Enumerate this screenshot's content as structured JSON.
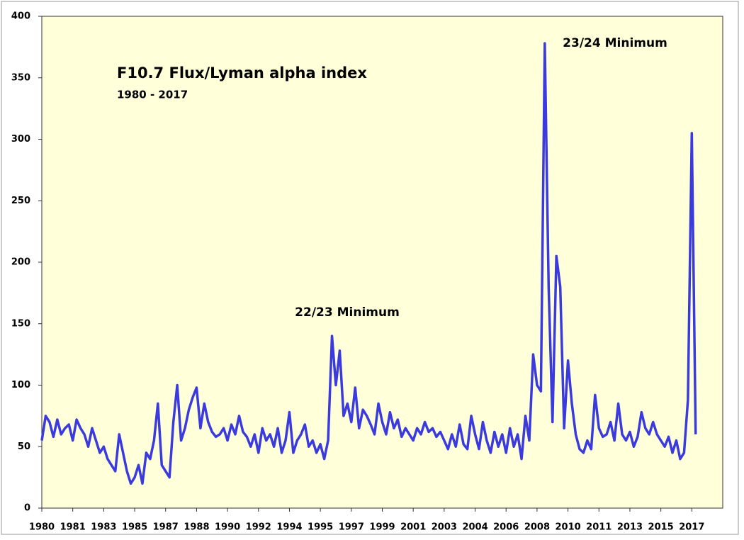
{
  "chart_data": {
    "type": "line",
    "title": "F10.7 Flux/Lyman alpha index",
    "subtitle": "1980 - 2017",
    "annotations": [
      "22/23 Minimum",
      "23/24 Minimum"
    ],
    "series": [
      {
        "name": "F10.7 Flux/Lyman alpha index",
        "color": "#3a3ade",
        "values": [
          55,
          75,
          70,
          58,
          72,
          60,
          65,
          68,
          55,
          72,
          65,
          60,
          50,
          65,
          55,
          45,
          50,
          40,
          35,
          30,
          60,
          45,
          30,
          20,
          25,
          35,
          20,
          45,
          40,
          55,
          85,
          35,
          30,
          25,
          70,
          100,
          55,
          65,
          80,
          90,
          98,
          65,
          85,
          70,
          62,
          58,
          60,
          65,
          55,
          68,
          60,
          75,
          62,
          58,
          50,
          60,
          45,
          65,
          55,
          60,
          50,
          65,
          45,
          55,
          78,
          45,
          55,
          60,
          68,
          50,
          55,
          45,
          52,
          40,
          55,
          140,
          100,
          128,
          75,
          85,
          70,
          98,
          65,
          80,
          75,
          68,
          60,
          85,
          70,
          60,
          78,
          65,
          72,
          58,
          65,
          60,
          55,
          65,
          60,
          70,
          62,
          65,
          58,
          62,
          55,
          48,
          60,
          50,
          68,
          52,
          48,
          75,
          60,
          48,
          70,
          55,
          45,
          62,
          50,
          60,
          45,
          65,
          50,
          60,
          40,
          75,
          55,
          125,
          100,
          95,
          378,
          180,
          70,
          205,
          180,
          65,
          120,
          85,
          60,
          48,
          45,
          55,
          48,
          92,
          65,
          58,
          60,
          70,
          55,
          85,
          60,
          55,
          62,
          50,
          58,
          78,
          65,
          60,
          70,
          60,
          55,
          50,
          58,
          45,
          55,
          40,
          45,
          88,
          305,
          60
        ]
      }
    ],
    "xlim": [
      0,
      176
    ],
    "xticks": [
      {
        "value": 0,
        "label": "1980"
      },
      {
        "value": 8,
        "label": "1981"
      },
      {
        "value": 16,
        "label": "1983"
      },
      {
        "value": 24,
        "label": "1985"
      },
      {
        "value": 32,
        "label": "1987"
      },
      {
        "value": 40,
        "label": "1988"
      },
      {
        "value": 48,
        "label": "1990"
      },
      {
        "value": 56,
        "label": "1992"
      },
      {
        "value": 64,
        "label": "1994"
      },
      {
        "value": 72,
        "label": "1995"
      },
      {
        "value": 80,
        "label": "1997"
      },
      {
        "value": 88,
        "label": "1999"
      },
      {
        "value": 96,
        "label": "2001"
      },
      {
        "value": 104,
        "label": "2003"
      },
      {
        "value": 112,
        "label": "2004"
      },
      {
        "value": 120,
        "label": "2006"
      },
      {
        "value": 128,
        "label": "2008"
      },
      {
        "value": 136,
        "label": "2010"
      },
      {
        "value": 144,
        "label": "2011"
      },
      {
        "value": 152,
        "label": "2013"
      },
      {
        "value": 160,
        "label": "2015"
      },
      {
        "value": 168,
        "label": "2017"
      }
    ],
    "ylim": [
      0,
      400
    ],
    "yticks": [
      0,
      50,
      100,
      150,
      200,
      250,
      300,
      350,
      400
    ],
    "grid": false
  }
}
